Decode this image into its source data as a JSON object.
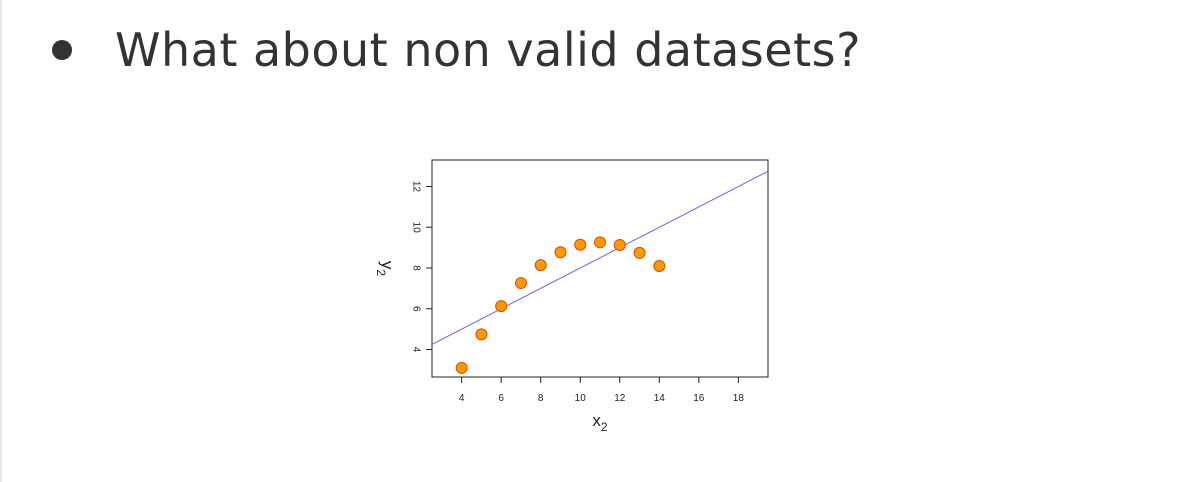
{
  "slide": {
    "bullet_text": "What about non valid datasets?"
  },
  "colors": {
    "text": "#333333",
    "point_fill": "#ff9900",
    "point_stroke": "#d94c00",
    "fit_line": "#6666ee",
    "axis": "#222222"
  },
  "chart_data": {
    "type": "scatter",
    "xlabel": "x",
    "xlabel_sub": "2",
    "ylabel": "y",
    "ylabel_sub": "2",
    "xlim": [
      2.5,
      19.5
    ],
    "ylim": [
      2.65,
      13.3
    ],
    "xticks": [
      4,
      6,
      8,
      10,
      12,
      14,
      16,
      18
    ],
    "yticks": [
      4,
      6,
      8,
      10,
      12
    ],
    "x": [
      4,
      5,
      6,
      7,
      8,
      9,
      10,
      11,
      12,
      13,
      14
    ],
    "y": [
      3.1,
      4.74,
      6.13,
      7.26,
      8.14,
      8.77,
      9.14,
      9.26,
      9.13,
      8.74,
      8.1
    ],
    "fit_line": {
      "intercept": 3.0,
      "slope": 0.5
    }
  }
}
